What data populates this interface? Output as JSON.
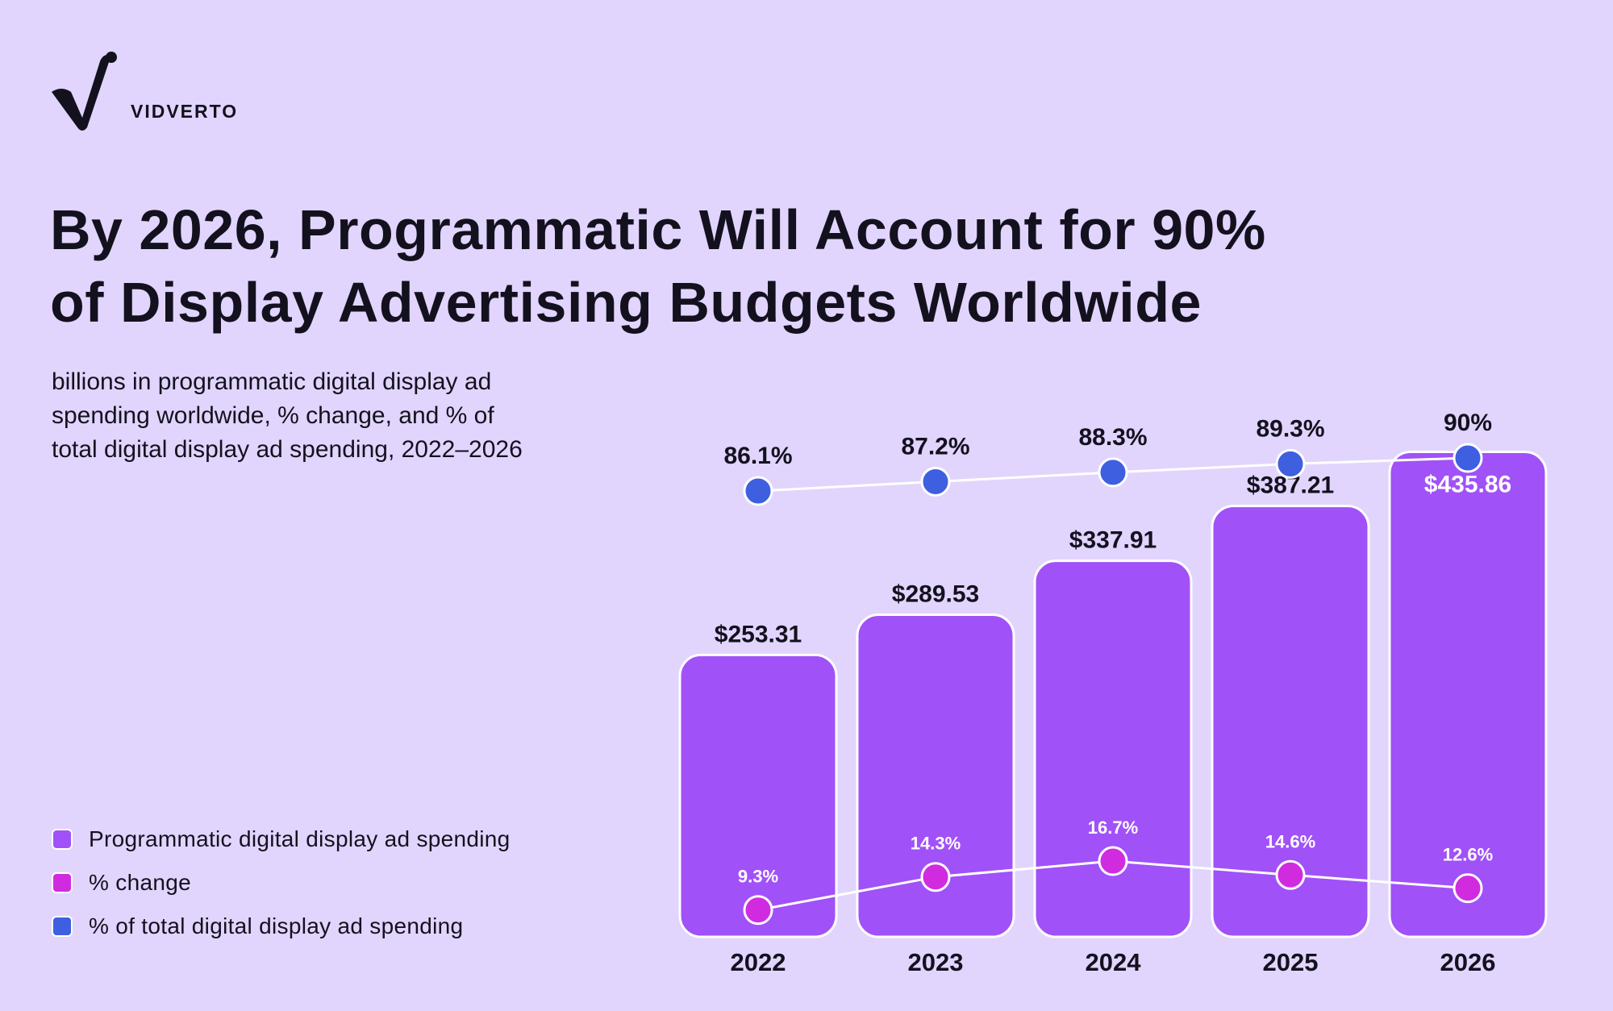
{
  "brand": {
    "name": "VIDVERTO"
  },
  "title": {
    "line1": "By 2026, Programmatic Will Account for 90%",
    "line2": "of Display Advertising Budgets Worldwide"
  },
  "subtitle": {
    "line1": "billions in programmatic digital display ad",
    "line2": "spending worldwide, % change, and % of",
    "line3": "total digital display ad spending, 2022–2026"
  },
  "legend": [
    {
      "label": "Programmatic digital display ad spending",
      "color": "#a151f8"
    },
    {
      "label": "% change",
      "color": "#d12be0"
    },
    {
      "label": "% of total digital display ad spending",
      "color": "#3e5fe0"
    }
  ],
  "colors": {
    "background": "#e1d5fd",
    "bar": "#a151f8",
    "change_dot": "#d12be0",
    "share_dot": "#3e5fe0",
    "line": "#ffffff"
  },
  "chart_data": {
    "type": "bar",
    "categories": [
      "2022",
      "2023",
      "2024",
      "2025",
      "2026"
    ],
    "series": [
      {
        "name": "Programmatic digital display ad spending",
        "kind": "bar",
        "values": [
          253.31,
          289.53,
          337.91,
          387.21,
          435.86
        ],
        "labels": [
          "$253.31",
          "$289.53",
          "$337.91",
          "$387.21",
          "$435.86"
        ]
      },
      {
        "name": "% change",
        "kind": "line",
        "values": [
          9.3,
          14.3,
          16.7,
          14.6,
          12.6
        ],
        "labels": [
          "9.3%",
          "14.3%",
          "16.7%",
          "14.6%",
          "12.6%"
        ]
      },
      {
        "name": "% of total digital display ad spending",
        "kind": "line",
        "values": [
          86.1,
          87.2,
          88.3,
          89.3,
          90
        ],
        "labels": [
          "86.1%",
          "87.2%",
          "88.3%",
          "89.3%",
          "90%"
        ]
      }
    ],
    "title": "By 2026, Programmatic Will Account for 90% of Display Advertising Budgets Worldwide",
    "xlabel": "",
    "ylabel": "",
    "grid": false,
    "legend_position": "bottom-left"
  }
}
